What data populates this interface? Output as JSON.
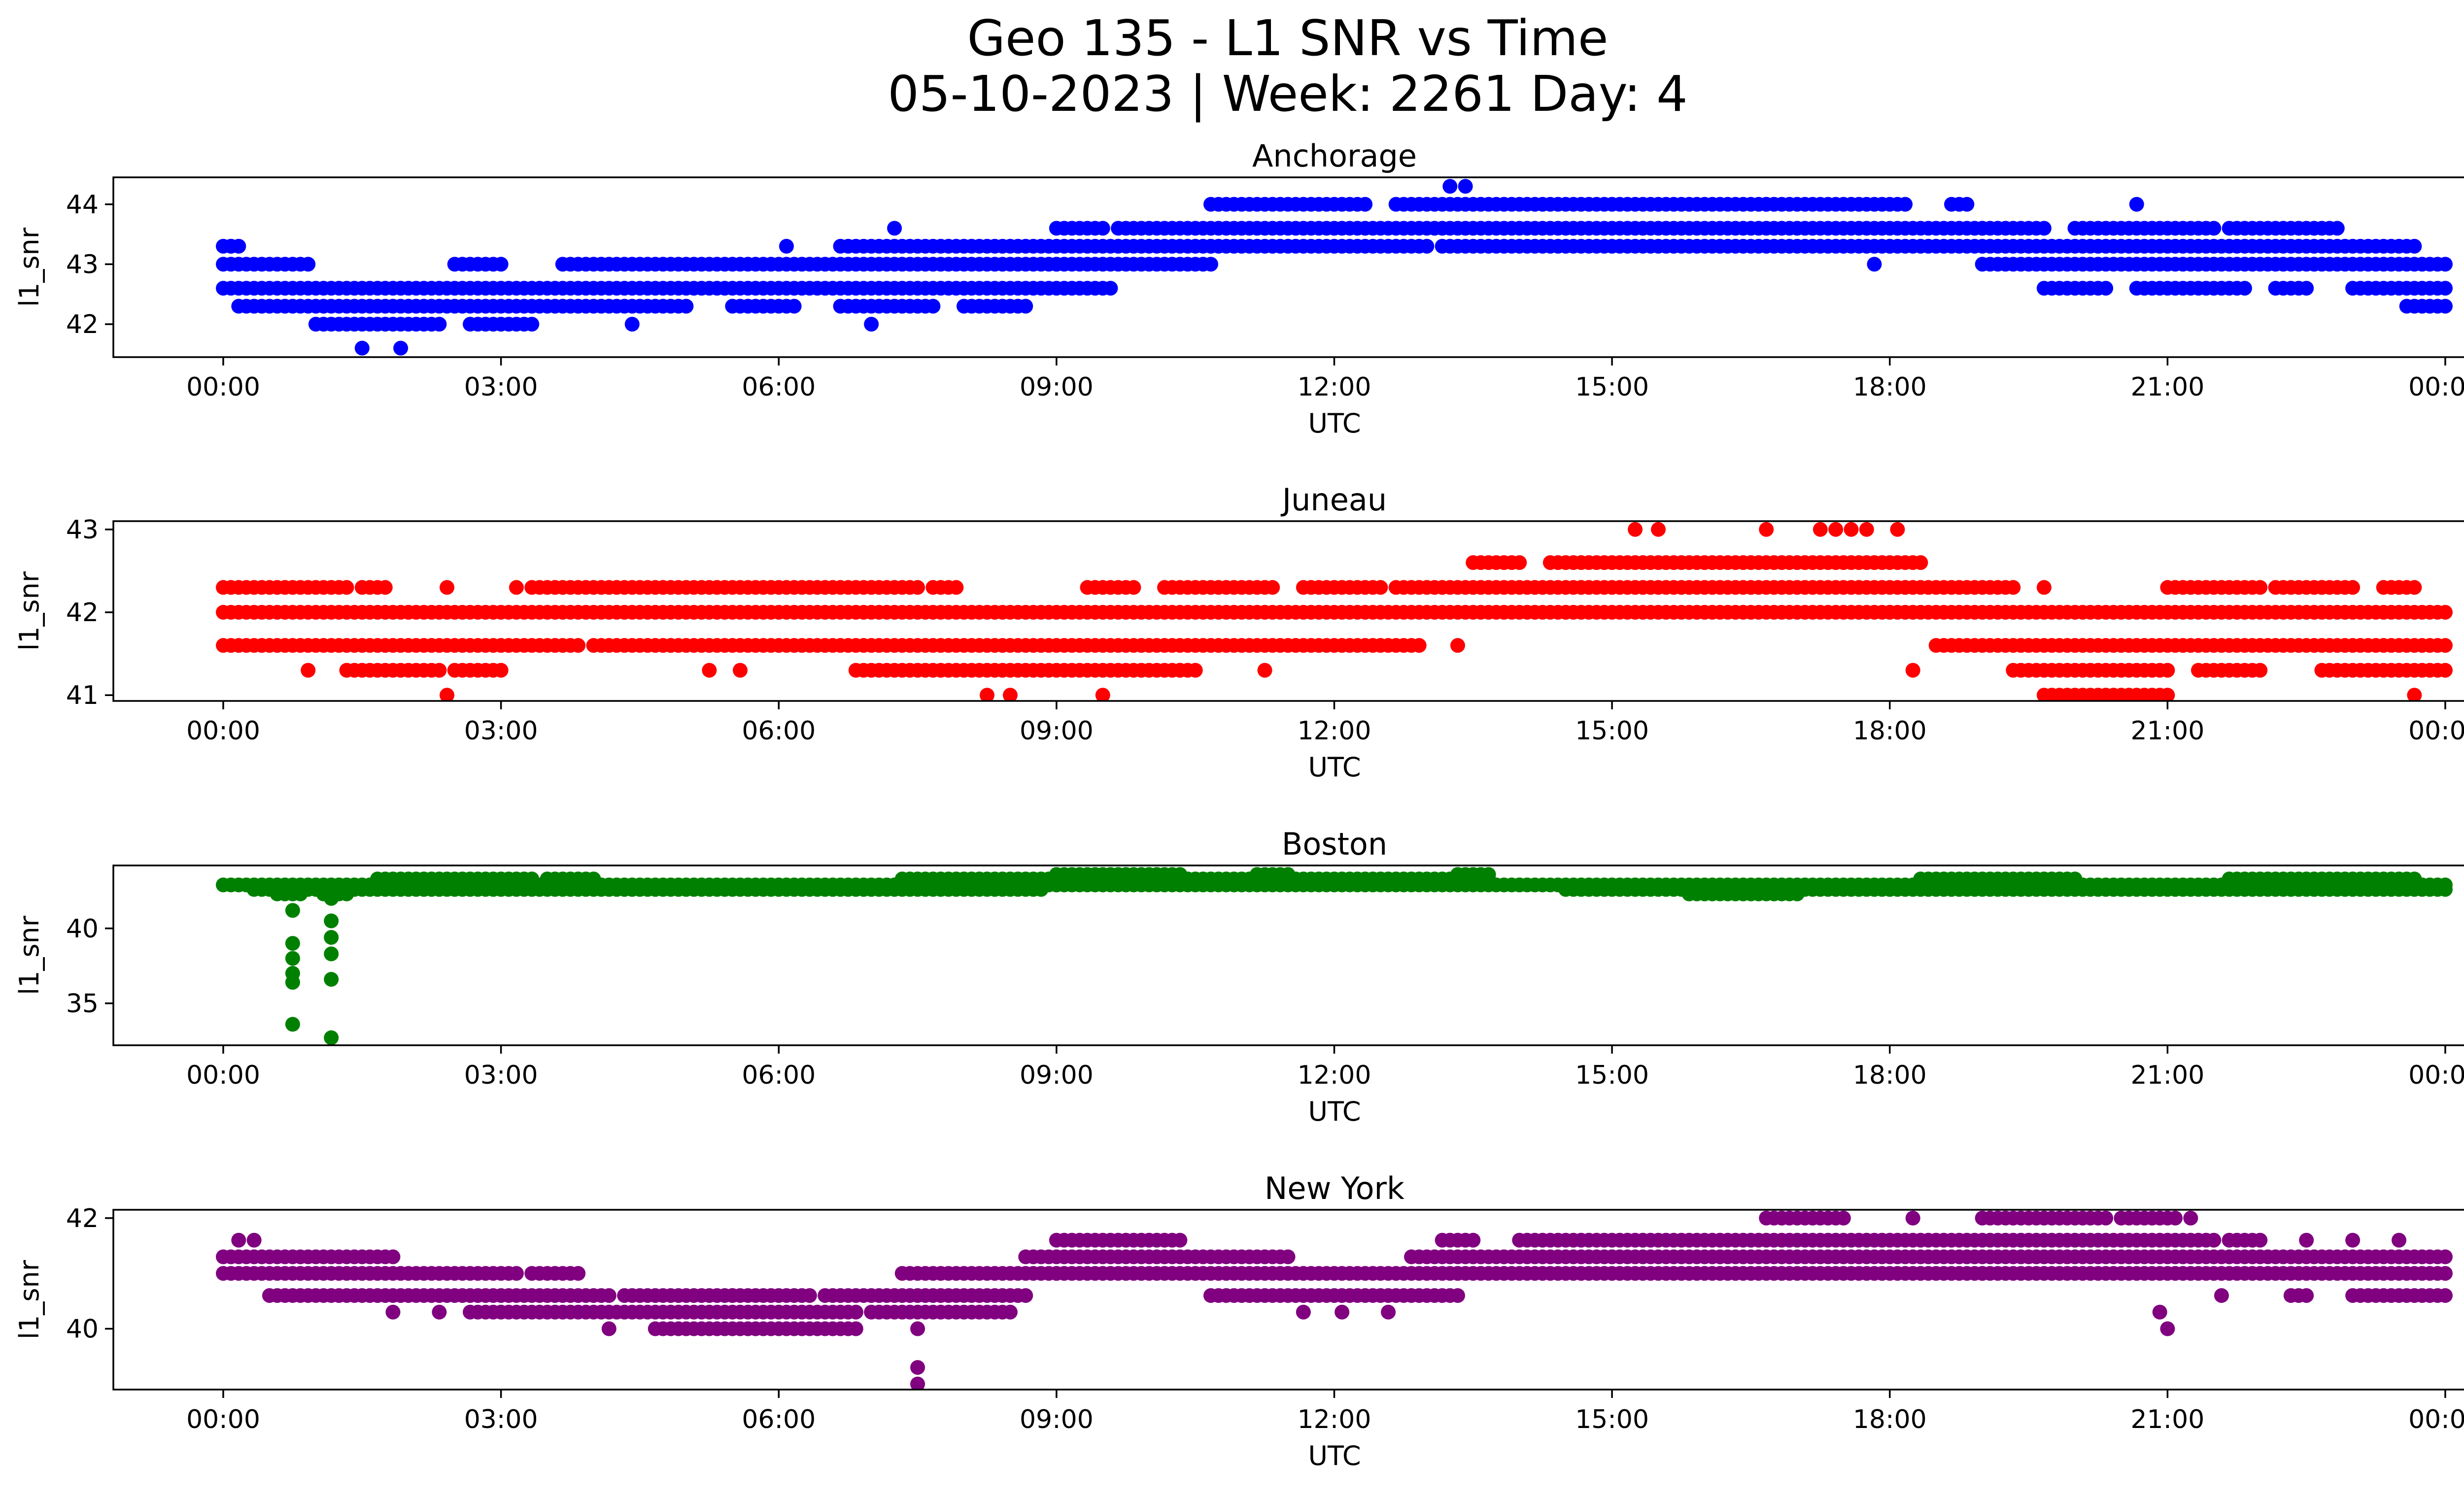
{
  "figure": {
    "title_line1": "Geo 135 - L1 SNR vs Time",
    "title_line2": "05-10-2023 | Week: 2261 Day: 4"
  },
  "chart_data": [
    {
      "type": "scatter",
      "title": "Anchorage",
      "xlabel": "UTC",
      "ylabel": "l1_snr",
      "color": "#0000ff",
      "xlim": [
        "00:00",
        "24:00"
      ],
      "ylim": [
        41.45,
        44.45
      ],
      "xticks": [
        "00:00",
        "03:00",
        "06:00",
        "09:00",
        "12:00",
        "15:00",
        "18:00",
        "21:00",
        "00:00"
      ],
      "yticks": [
        42,
        43,
        44
      ],
      "bands": [
        {
          "y": 43.0,
          "segments": [
            [
              "00:00",
              "00:55"
            ],
            [
              "02:30",
              "03:00"
            ],
            [
              "03:40",
              "04:40"
            ],
            [
              "04:45",
              "09:00"
            ],
            [
              "09:00",
              "10:40"
            ],
            [
              "19:00",
              "21:30"
            ],
            [
              "21:30",
              "24:00"
            ]
          ]
        },
        {
          "y": 42.6,
          "segments": [
            [
              "00:00",
              "01:55"
            ],
            [
              "01:55",
              "09:30"
            ],
            [
              "19:40",
              "20:20"
            ],
            [
              "20:40",
              "21:50"
            ],
            [
              "22:10",
              "22:30"
            ],
            [
              "23:00",
              "24:00"
            ]
          ]
        },
        {
          "y": 42.3,
          "segments": [
            [
              "00:10",
              "01:30"
            ],
            [
              "01:35",
              "05:00"
            ],
            [
              "05:30",
              "06:10"
            ],
            [
              "06:40",
              "07:40"
            ],
            [
              "08:00",
              "08:40"
            ]
          ]
        },
        {
          "y": 42.0,
          "segments": [
            [
              "01:00",
              "02:20"
            ],
            [
              "02:40",
              "03:20"
            ]
          ]
        },
        {
          "y": 43.3,
          "segments": [
            [
              "00:00",
              "00:10"
            ],
            [
              "06:40",
              "10:40"
            ],
            [
              "10:40",
              "13:00"
            ],
            [
              "13:10",
              "18:00"
            ],
            [
              "18:00",
              "23:40"
            ]
          ]
        },
        {
          "y": 43.6,
          "segments": [
            [
              "09:00",
              "09:30"
            ],
            [
              "09:40",
              "19:00"
            ],
            [
              "19:00",
              "19:40"
            ],
            [
              "20:00",
              "21:30"
            ],
            [
              "21:40",
              "22:50"
            ]
          ]
        },
        {
          "y": 44.0,
          "segments": [
            [
              "10:40",
              "12:20"
            ],
            [
              "12:40",
              "16:40"
            ],
            [
              "16:40",
              "18:10"
            ],
            [
              "18:40",
              "18:50"
            ]
          ]
        },
        {
          "y": 42.3,
          "segments": [
            [
              "23:35",
              "24:00"
            ]
          ]
        }
      ],
      "points": [
        {
          "x": "01:30",
          "y": 41.6
        },
        {
          "x": "01:55",
          "y": 41.6
        },
        {
          "x": "04:25",
          "y": 42.0
        },
        {
          "x": "07:00",
          "y": 42.0
        },
        {
          "x": "06:05",
          "y": 43.3
        },
        {
          "x": "07:15",
          "y": 43.6
        },
        {
          "x": "09:35",
          "y": 42.6
        },
        {
          "x": "13:15",
          "y": 44.3
        },
        {
          "x": "13:25",
          "y": 44.3
        },
        {
          "x": "20:40",
          "y": 44.0
        },
        {
          "x": "17:50",
          "y": 43.0
        },
        {
          "x": "00:05",
          "y": 43.3
        }
      ]
    },
    {
      "type": "scatter",
      "title": "Juneau",
      "xlabel": "UTC",
      "ylabel": "l1_snr",
      "color": "#ff0000",
      "xlim": [
        "00:00",
        "24:00"
      ],
      "ylim": [
        40.93,
        43.1
      ],
      "xticks": [
        "00:00",
        "03:00",
        "06:00",
        "09:00",
        "12:00",
        "15:00",
        "18:00",
        "21:00",
        "00:00"
      ],
      "yticks": [
        41,
        42,
        43
      ],
      "bands": [
        {
          "y": 42.0,
          "segments": [
            [
              "00:00",
              "02:00"
            ],
            [
              "02:00",
              "14:30"
            ],
            [
              "14:30",
              "18:00"
            ],
            [
              "18:00",
              "24:00"
            ]
          ]
        },
        {
          "y": 41.6,
          "segments": [
            [
              "00:00",
              "03:50"
            ],
            [
              "04:00",
              "04:50"
            ],
            [
              "04:50",
              "12:55"
            ],
            [
              "18:30",
              "24:00"
            ]
          ]
        },
        {
          "y": 42.3,
          "segments": [
            [
              "00:00",
              "01:20"
            ],
            [
              "01:30",
              "01:45"
            ],
            [
              "03:20",
              "07:30"
            ],
            [
              "07:40",
              "07:55"
            ],
            [
              "09:20",
              "09:50"
            ],
            [
              "10:10",
              "11:20"
            ],
            [
              "11:40",
              "12:30"
            ],
            [
              "12:40",
              "18:10"
            ],
            [
              "18:10",
              "19:20"
            ],
            [
              "21:00",
              "22:00"
            ],
            [
              "22:10",
              "23:00"
            ],
            [
              "23:20",
              "23:40"
            ]
          ]
        },
        {
          "y": 41.3,
          "segments": [
            [
              "01:20",
              "02:20"
            ],
            [
              "02:30",
              "03:00"
            ],
            [
              "06:50",
              "07:35"
            ],
            [
              "07:40",
              "10:30"
            ],
            [
              "19:20",
              "21:00"
            ],
            [
              "21:20",
              "22:00"
            ],
            [
              "22:40",
              "24:00"
            ]
          ]
        },
        {
          "y": 42.6,
          "segments": [
            [
              "13:30",
              "14:00"
            ],
            [
              "14:20",
              "18:20"
            ]
          ]
        },
        {
          "y": 41.0,
          "segments": [
            [
              "19:40",
              "21:00"
            ]
          ]
        }
      ],
      "points": [
        {
          "x": "00:55",
          "y": 41.3
        },
        {
          "x": "05:15",
          "y": 41.3
        },
        {
          "x": "05:35",
          "y": 41.3
        },
        {
          "x": "10:20",
          "y": 41.3
        },
        {
          "x": "11:15",
          "y": 41.3
        },
        {
          "x": "18:15",
          "y": 41.3
        },
        {
          "x": "02:25",
          "y": 41.0
        },
        {
          "x": "08:15",
          "y": 41.0
        },
        {
          "x": "08:30",
          "y": 41.0
        },
        {
          "x": "09:30",
          "y": 41.0
        },
        {
          "x": "23:40",
          "y": 41.0
        },
        {
          "x": "13:20",
          "y": 41.6
        },
        {
          "x": "15:15",
          "y": 43.0
        },
        {
          "x": "15:30",
          "y": 43.0
        },
        {
          "x": "16:40",
          "y": 43.0
        },
        {
          "x": "17:15",
          "y": 43.0
        },
        {
          "x": "17:25",
          "y": 43.0
        },
        {
          "x": "17:35",
          "y": 43.0
        },
        {
          "x": "17:45",
          "y": 43.0
        },
        {
          "x": "18:05",
          "y": 43.0
        },
        {
          "x": "02:25",
          "y": 42.3
        },
        {
          "x": "03:10",
          "y": 42.3
        },
        {
          "x": "19:40",
          "y": 42.3
        },
        {
          "x": "22:40",
          "y": 42.3
        }
      ]
    },
    {
      "type": "scatter",
      "title": "Boston",
      "xlabel": "UTC",
      "ylabel": "l1_snr",
      "color": "#008000",
      "xlim": [
        "00:00",
        "24:00"
      ],
      "ylim": [
        32.2,
        44.2
      ],
      "xticks": [
        "00:00",
        "03:00",
        "06:00",
        "09:00",
        "12:00",
        "15:00",
        "18:00",
        "21:00",
        "00:00"
      ],
      "yticks": [
        35,
        40
      ],
      "bands": [
        {
          "y": 42.9,
          "segments": [
            [
              "00:00",
              "09:00"
            ],
            [
              "09:00",
              "14:00"
            ],
            [
              "14:00",
              "24:00"
            ]
          ]
        },
        {
          "y": 42.6,
          "segments": [
            [
              "00:20",
              "08:50"
            ],
            [
              "14:30",
              "16:00"
            ],
            [
              "16:00",
              "18:00"
            ],
            [
              "18:00",
              "24:00"
            ]
          ]
        },
        {
          "y": 43.3,
          "segments": [
            [
              "01:40",
              "03:20"
            ],
            [
              "03:30",
              "04:00"
            ],
            [
              "07:20",
              "09:00"
            ],
            [
              "09:00",
              "11:30"
            ],
            [
              "11:30",
              "13:40"
            ],
            [
              "18:20",
              "20:00"
            ],
            [
              "21:40",
              "23:40"
            ]
          ]
        },
        {
          "y": 43.6,
          "segments": [
            [
              "09:00",
              "10:20"
            ],
            [
              "11:10",
              "11:30"
            ],
            [
              "13:20",
              "13:40"
            ]
          ]
        },
        {
          "y": 42.3,
          "segments": [
            [
              "15:50",
              "17:00"
            ],
            [
              "00:35",
              "00:50"
            ],
            [
              "01:05",
              "01:20"
            ]
          ]
        }
      ],
      "points": [
        {
          "x": "00:45",
          "y": 41.2
        },
        {
          "x": "00:45",
          "y": 39.0
        },
        {
          "x": "00:45",
          "y": 38.0
        },
        {
          "x": "00:45",
          "y": 37.0
        },
        {
          "x": "00:45",
          "y": 36.4
        },
        {
          "x": "00:45",
          "y": 33.6
        },
        {
          "x": "01:10",
          "y": 42.0
        },
        {
          "x": "01:10",
          "y": 40.5
        },
        {
          "x": "01:10",
          "y": 39.4
        },
        {
          "x": "01:10",
          "y": 38.3
        },
        {
          "x": "01:10",
          "y": 36.6
        },
        {
          "x": "01:10",
          "y": 32.7
        }
      ]
    },
    {
      "type": "scatter",
      "title": "New York",
      "xlabel": "UTC",
      "ylabel": "l1_snr",
      "color": "#800080",
      "xlim": [
        "00:00",
        "24:00"
      ],
      "ylim": [
        38.9,
        42.15
      ],
      "xticks": [
        "00:00",
        "03:00",
        "06:00",
        "09:00",
        "12:00",
        "15:00",
        "18:00",
        "21:00",
        "00:00"
      ],
      "yticks": [
        40,
        42
      ],
      "bands": [
        {
          "y": 41.0,
          "segments": [
            [
              "00:00",
              "03:10"
            ],
            [
              "03:20",
              "03:50"
            ],
            [
              "07:20",
              "09:00"
            ],
            [
              "09:00",
              "13:20"
            ],
            [
              "13:20",
              "19:00"
            ],
            [
              "19:00",
              "24:00"
            ]
          ]
        },
        {
          "y": 40.6,
          "segments": [
            [
              "00:30",
              "04:10"
            ],
            [
              "04:20",
              "05:30"
            ],
            [
              "05:30",
              "06:20"
            ],
            [
              "06:30",
              "08:40"
            ],
            [
              "10:40",
              "13:20"
            ],
            [
              "22:20",
              "22:30"
            ],
            [
              "23:00",
              "24:00"
            ]
          ]
        },
        {
          "y": 40.3,
          "segments": [
            [
              "02:40",
              "06:50"
            ],
            [
              "07:00",
              "08:30"
            ]
          ]
        },
        {
          "y": 40.0,
          "segments": [
            [
              "04:40",
              "06:50"
            ]
          ]
        },
        {
          "y": 41.3,
          "segments": [
            [
              "00:00",
              "01:50"
            ],
            [
              "08:40",
              "11:30"
            ],
            [
              "12:50",
              "15:00"
            ],
            [
              "15:00",
              "24:00"
            ]
          ]
        },
        {
          "y": 41.6,
          "segments": [
            [
              "09:00",
              "10:20"
            ],
            [
              "13:10",
              "13:30"
            ],
            [
              "14:00",
              "21:30"
            ],
            [
              "21:40",
              "22:00"
            ]
          ]
        },
        {
          "y": 42.0,
          "segments": [
            [
              "16:40",
              "17:30"
            ],
            [
              "19:00",
              "20:20"
            ],
            [
              "20:30",
              "21:00"
            ]
          ]
        }
      ],
      "points": [
        {
          "x": "00:10",
          "y": 41.6
        },
        {
          "x": "00:20",
          "y": 41.6
        },
        {
          "x": "01:50",
          "y": 40.3
        },
        {
          "x": "02:20",
          "y": 40.3
        },
        {
          "x": "04:10",
          "y": 40.0
        },
        {
          "x": "07:30",
          "y": 40.0
        },
        {
          "x": "07:30",
          "y": 39.3
        },
        {
          "x": "07:30",
          "y": 39.0
        },
        {
          "x": "11:40",
          "y": 40.3
        },
        {
          "x": "12:05",
          "y": 40.3
        },
        {
          "x": "12:35",
          "y": 40.3
        },
        {
          "x": "21:00",
          "y": 40.0
        },
        {
          "x": "18:15",
          "y": 42.0
        },
        {
          "x": "21:05",
          "y": 42.0
        },
        {
          "x": "21:15",
          "y": 42.0
        },
        {
          "x": "20:55",
          "y": 40.3
        },
        {
          "x": "21:35",
          "y": 40.6
        },
        {
          "x": "22:30",
          "y": 41.6
        },
        {
          "x": "23:00",
          "y": 41.6
        },
        {
          "x": "23:30",
          "y": 41.6
        }
      ]
    }
  ]
}
